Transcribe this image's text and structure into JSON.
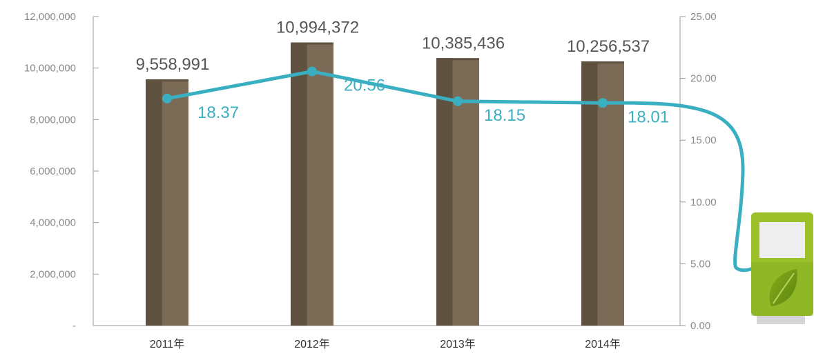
{
  "chart_data": {
    "type": "bar",
    "categories": [
      "2011年",
      "2012年",
      "2013年",
      "2014年"
    ],
    "series": [
      {
        "axis": "left",
        "type": "bar",
        "values": [
          9558991,
          10994372,
          10385436,
          10256537
        ],
        "labels": [
          "9,558,991",
          "10,994,372",
          "10,385,436",
          "10,256,537"
        ]
      },
      {
        "axis": "right",
        "type": "line",
        "values": [
          18.37,
          20.56,
          18.15,
          18.01
        ],
        "labels": [
          "18.37",
          "20.56",
          "18.15",
          "18.01"
        ]
      }
    ],
    "left_axis": {
      "ylim": [
        0,
        12000000
      ],
      "ticks": [
        0,
        2000000,
        4000000,
        6000000,
        8000000,
        10000000,
        12000000
      ],
      "tick_labels": [
        "-",
        "2,000,000",
        "4,000,000",
        "6,000,000",
        "8,000,000",
        "10,000,000",
        "12,000,000"
      ]
    },
    "right_axis": {
      "ylim": [
        0,
        25
      ],
      "ticks": [
        0,
        5,
        10,
        15,
        20,
        25
      ],
      "tick_labels": [
        "0.00",
        "5.00",
        "10.00",
        "15.00",
        "20.00",
        "25.00"
      ]
    },
    "colors": {
      "bar_dark": "#5f5140",
      "bar_light": "#7b6a55",
      "line": "#3aafc2",
      "axis": "#999999",
      "tick_text": "#8a8a8a",
      "bar_label": "#555555",
      "category_text": "#333333",
      "pump_green": "#9bc02a",
      "pump_dark_green": "#6f9a18",
      "pump_base": "#d6d6d6",
      "pump_screen": "#eeeeee"
    },
    "decoration": "green fuel pump icon with leaf at right end of line",
    "grid": false
  }
}
